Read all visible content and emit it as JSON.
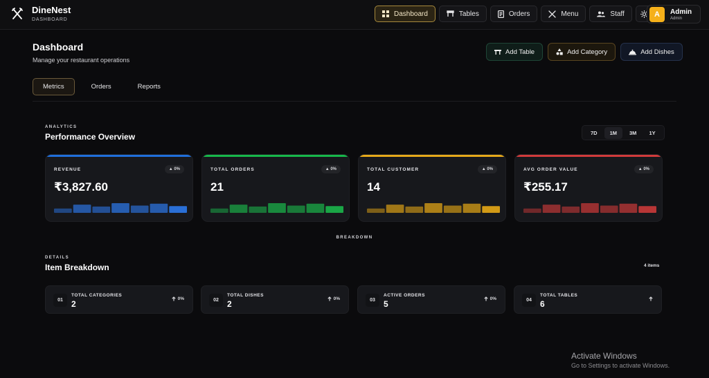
{
  "brand": {
    "name": "DineNest",
    "subtitle": "DASHBOARD"
  },
  "nav": {
    "items": [
      {
        "label": "Dashboard",
        "icon": "grid-icon",
        "active": true
      },
      {
        "label": "Tables",
        "icon": "table-icon",
        "active": false
      },
      {
        "label": "Orders",
        "icon": "receipt-icon",
        "active": false
      },
      {
        "label": "Menu",
        "icon": "utensils-icon",
        "active": false
      },
      {
        "label": "Staff",
        "icon": "users-icon",
        "active": false
      }
    ],
    "theme_icon": "sun-icon"
  },
  "user": {
    "initial": "A",
    "name": "Admin",
    "role": "Admin"
  },
  "page": {
    "title": "Dashboard",
    "subtitle": "Manage your restaurant operations"
  },
  "actions": {
    "add_table": "Add Table",
    "add_category": "Add Category",
    "add_dishes": "Add Dishes"
  },
  "tabs": [
    {
      "label": "Metrics",
      "active": true
    },
    {
      "label": "Orders",
      "active": false
    },
    {
      "label": "Reports",
      "active": false
    }
  ],
  "analytics": {
    "eyebrow": "ANALYTICS",
    "title": "Performance Overview",
    "ranges": [
      {
        "label": "7D",
        "active": false
      },
      {
        "label": "1M",
        "active": true
      },
      {
        "label": "3M",
        "active": false
      },
      {
        "label": "1Y",
        "active": false
      }
    ],
    "metrics": [
      {
        "label": "REVENUE",
        "value": "₹3,827.60",
        "change": "▲ 0%",
        "color": "#1f6fdc",
        "bar_color": "#2a6fd6",
        "trend": [
          0.45,
          0.85,
          0.65,
          1.0,
          0.75,
          0.95,
          0.7
        ]
      },
      {
        "label": "TOTAL ORDERS",
        "value": "21",
        "change": "▲ 0%",
        "color": "#17b84a",
        "bar_color": "#1aa646",
        "trend": [
          0.45,
          0.85,
          0.65,
          1.0,
          0.75,
          0.95,
          0.7
        ]
      },
      {
        "label": "TOTAL CUSTOMER",
        "value": "14",
        "change": "▲ 0%",
        "color": "#e6a91a",
        "bar_color": "#d29a16",
        "trend": [
          0.45,
          0.85,
          0.65,
          1.0,
          0.75,
          0.95,
          0.7
        ]
      },
      {
        "label": "AVG ORDER VALUE",
        "value": "₹255.17",
        "change": "▲ 0%",
        "color": "#d23b3b",
        "bar_color": "#b83636",
        "trend": [
          0.45,
          0.85,
          0.65,
          1.0,
          0.75,
          0.95,
          0.7
        ]
      }
    ]
  },
  "breakdown_label": "BREAKDOWN",
  "details": {
    "eyebrow": "DETAILS",
    "title": "Item Breakdown",
    "count": "4 items",
    "items": [
      {
        "num": "01",
        "label": "TOTAL CATEGORIES",
        "value": "2",
        "delta": "0%"
      },
      {
        "num": "02",
        "label": "TOTAL DISHES",
        "value": "2",
        "delta": "0%"
      },
      {
        "num": "03",
        "label": "ACTIVE ORDERS",
        "value": "5",
        "delta": "0%"
      },
      {
        "num": "04",
        "label": "TOTAL TABLES",
        "value": "6",
        "delta": ""
      }
    ]
  },
  "watermark": {
    "title": "Activate Windows",
    "subtitle": "Go to Settings to activate Windows."
  }
}
